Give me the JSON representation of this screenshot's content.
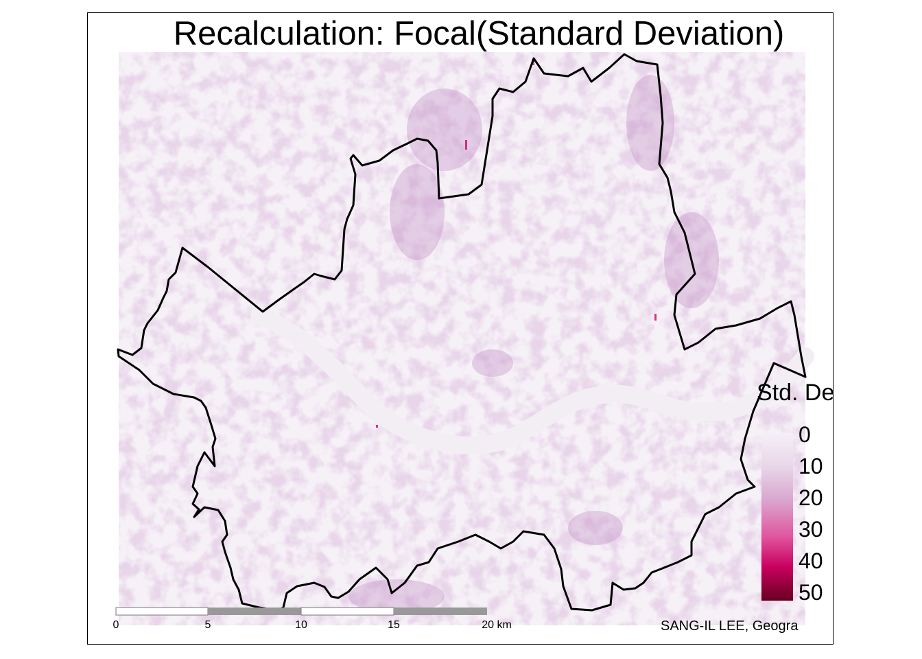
{
  "title": "Recalculation: Focal(Standard Deviation)",
  "legend": {
    "title": "Std. Dev.",
    "labels": [
      "0",
      "10",
      "20",
      "30",
      "40",
      "50"
    ],
    "colors": [
      "#f6eff7",
      "#e8d6e8",
      "#d9a6cf",
      "#e0559e",
      "#c8005f",
      "#67001f"
    ]
  },
  "scale_bar": {
    "labels": [
      "0",
      "5",
      "10",
      "15",
      "20 km"
    ],
    "fill_colors": [
      "#ffffff",
      "#999999"
    ]
  },
  "credit": "SANG-IL LEE, Geogra",
  "colors": {
    "background": "#f6f1f7",
    "river": "#f2eef4",
    "boundary": "#000000",
    "texture": "#b784bb"
  }
}
